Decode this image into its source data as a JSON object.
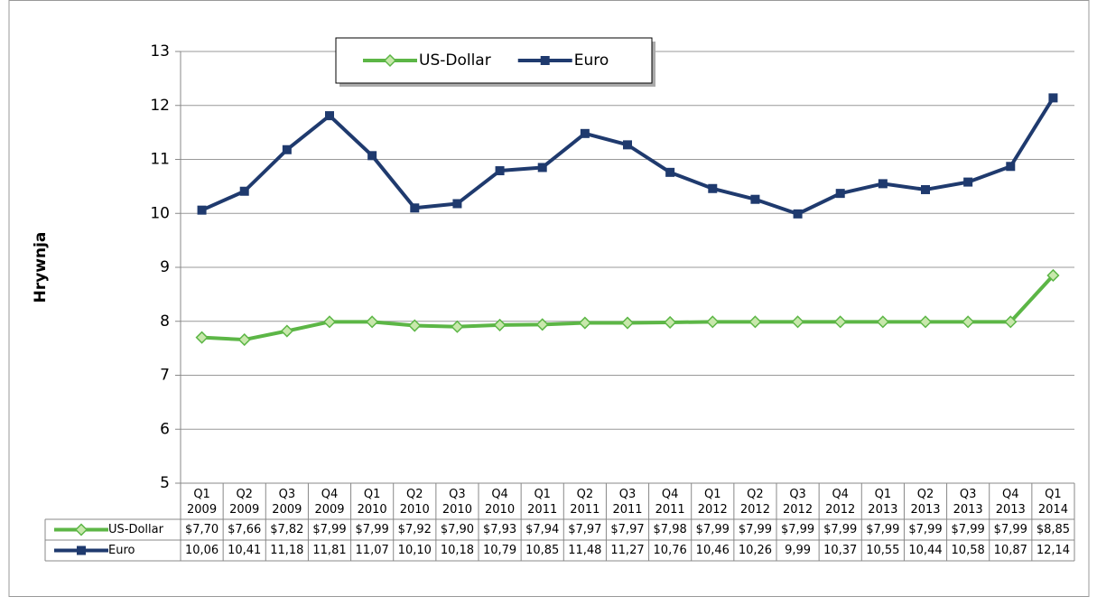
{
  "chart_data": {
    "type": "line",
    "y_label": "Hrywnja",
    "categories": [
      "Q1 2009",
      "Q2 2009",
      "Q3 2009",
      "Q4 2009",
      "Q1 2010",
      "Q2 2010",
      "Q3 2010",
      "Q4 2010",
      "Q1 2011",
      "Q2 2011",
      "Q3 2011",
      "Q4 2011",
      "Q1 2012",
      "Q2 2012",
      "Q3 2012",
      "Q4 2012",
      "Q1 2013",
      "Q2 2013",
      "Q3 2013",
      "Q4 2013",
      "Q1 2014"
    ],
    "series": [
      {
        "name": "US-Dollar",
        "color": "#5cb646",
        "marker": "diamond",
        "values": [
          7.7,
          7.66,
          7.82,
          7.99,
          7.99,
          7.92,
          7.9,
          7.93,
          7.94,
          7.97,
          7.97,
          7.98,
          7.99,
          7.99,
          7.99,
          7.99,
          7.99,
          7.99,
          7.99,
          7.99,
          8.85
        ],
        "value_labels": [
          "$7,70",
          "$7,66",
          "$7,82",
          "$7,99",
          "$7,99",
          "$7,92",
          "$7,90",
          "$7,93",
          "$7,94",
          "$7,97",
          "$7,97",
          "$7,98",
          "$7,99",
          "$7,99",
          "$7,99",
          "$7,99",
          "$7,99",
          "$7,99",
          "$7,99",
          "$7,99",
          "$8,85"
        ]
      },
      {
        "name": "Euro",
        "color": "#1f3a6e",
        "marker": "square",
        "values": [
          10.06,
          10.41,
          11.18,
          11.81,
          11.07,
          10.1,
          10.18,
          10.79,
          10.85,
          11.48,
          11.27,
          10.76,
          10.46,
          10.26,
          9.99,
          10.37,
          10.55,
          10.44,
          10.58,
          10.87,
          12.14
        ],
        "value_labels": [
          "10,06",
          "10,41",
          "11,18",
          "11,81",
          "11,07",
          "10,10",
          "10,18",
          "10,79",
          "10,85",
          "11,48",
          "11,27",
          "10,76",
          "10,46",
          "10,26",
          "9,99",
          "10,37",
          "10,55",
          "10,44",
          "10,58",
          "10,87",
          "12,14"
        ]
      }
    ],
    "ylim": [
      5,
      13
    ],
    "yticks": [
      5,
      6,
      7,
      8,
      9,
      10,
      11,
      12,
      13
    ],
    "grid": true,
    "legend": "top",
    "data_table": true
  }
}
